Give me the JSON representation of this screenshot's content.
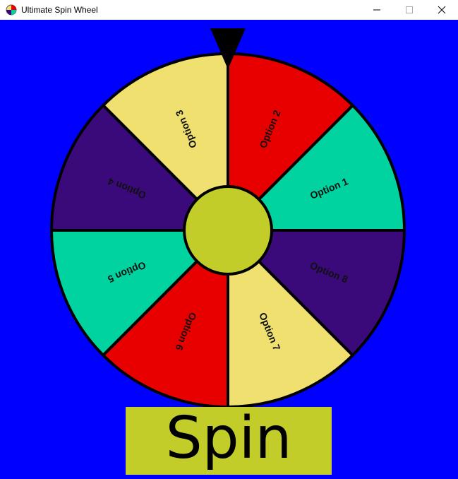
{
  "window": {
    "title": "Ultimate Spin Wheel",
    "controls": {
      "minimize": "minimize-icon",
      "maximize": "maximize-icon",
      "close": "close-icon"
    }
  },
  "colors": {
    "background": "#0000ff",
    "hub": "#c2cd2a",
    "outline": "#000000",
    "pointer": "#000000",
    "spin_button": "#c2cd2a"
  },
  "wheel": {
    "segments": [
      {
        "label": "Option 1",
        "color": "#00d3a0"
      },
      {
        "label": "Option 2",
        "color": "#e80000"
      },
      {
        "label": "Option 3",
        "color": "#f0e070"
      },
      {
        "label": "Option 4",
        "color": "#3a0a7a"
      },
      {
        "label": "Option 5",
        "color": "#00d3a0"
      },
      {
        "label": "Option 6",
        "color": "#e80000"
      },
      {
        "label": "Option 7",
        "color": "#f0e070"
      },
      {
        "label": "Option 8",
        "color": "#3a0a7a"
      }
    ]
  },
  "spin_button": {
    "label": "Spin"
  }
}
